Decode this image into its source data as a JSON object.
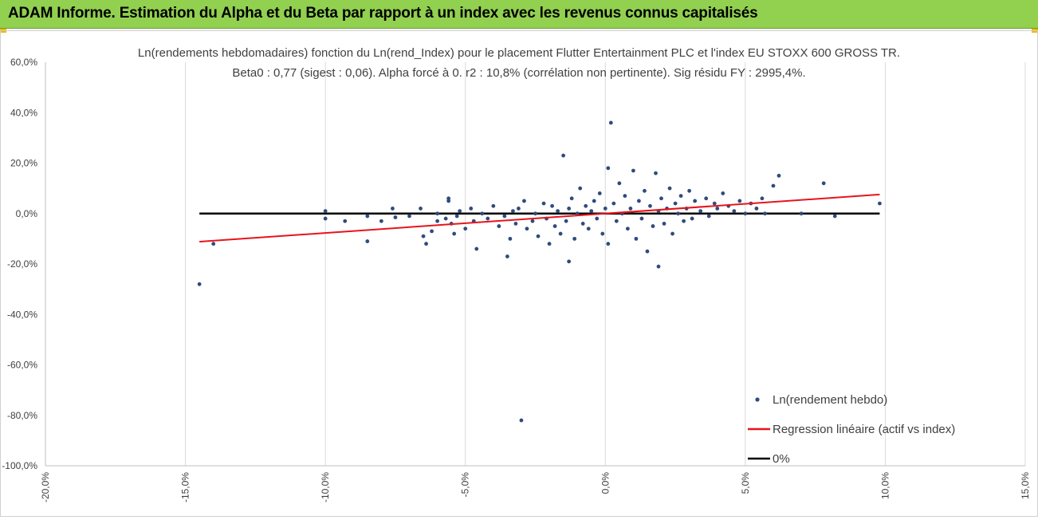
{
  "banner": {
    "title": "ADAM Informe. Estimation du Alpha et du Beta par rapport à un index avec les revenus connus capitalisés",
    "color": "#92d050"
  },
  "chart_data": {
    "type": "scatter",
    "title": "Ln(rendements hebdomadaires) fonction du Ln(rend_Index) pour le placement Flutter Entertainment PLC et l'index EU STOXX 600 GROSS TR.",
    "subtitle": "Beta0 : 0,77 (sigest : 0,06). Alpha forcé à 0. r2 : 10,8% (corrélation non pertinente). Sig résidu FY : 2995,4%.",
    "xlim": [
      -0.2,
      0.15
    ],
    "ylim": [
      -1.0,
      0.6
    ],
    "x_ticks": [
      -0.2,
      -0.15,
      -0.1,
      -0.05,
      0.0,
      0.05,
      0.1,
      0.15
    ],
    "x_tick_labels": [
      "-20,0%",
      "-15,0%",
      "-10,0%",
      "-5,0%",
      "0,0%",
      "5,0%",
      "10,0%",
      "15,0%"
    ],
    "y_ticks": [
      0.6,
      0.4,
      0.2,
      0.0,
      -0.2,
      -0.4,
      -0.6,
      -0.8,
      -1.0
    ],
    "y_tick_labels": [
      "60,0%",
      "40,0%",
      "20,0%",
      "0,0%",
      "-20,0%",
      "-40,0%",
      "-60,0%",
      "-80,0%",
      "-100,0%"
    ],
    "grid": "vertical",
    "legend_position": "bottom-right",
    "series": [
      {
        "name": "Ln(rendement hebdo)",
        "kind": "scatter",
        "color": "#2f4b7c",
        "points": [
          [
            -0.145,
            -0.28
          ],
          [
            -0.14,
            -0.12
          ],
          [
            -0.1,
            0.01
          ],
          [
            -0.1,
            -0.02
          ],
          [
            -0.093,
            -0.03
          ],
          [
            -0.085,
            -0.01
          ],
          [
            -0.085,
            -0.11
          ],
          [
            -0.08,
            -0.03
          ],
          [
            -0.076,
            0.02
          ],
          [
            -0.075,
            -0.015
          ],
          [
            -0.07,
            -0.01
          ],
          [
            -0.066,
            0.02
          ],
          [
            -0.065,
            -0.09
          ],
          [
            -0.064,
            -0.12
          ],
          [
            -0.062,
            -0.07
          ],
          [
            -0.06,
            -0.03
          ],
          [
            -0.06,
            0.0
          ],
          [
            -0.057,
            -0.02
          ],
          [
            -0.056,
            0.06
          ],
          [
            -0.056,
            0.05
          ],
          [
            -0.055,
            -0.04
          ],
          [
            -0.054,
            -0.08
          ],
          [
            -0.053,
            -0.01
          ],
          [
            -0.052,
            0.01
          ],
          [
            -0.05,
            -0.06
          ],
          [
            -0.048,
            0.02
          ],
          [
            -0.047,
            -0.03
          ],
          [
            -0.046,
            -0.14
          ],
          [
            -0.044,
            0.0
          ],
          [
            -0.042,
            -0.02
          ],
          [
            -0.04,
            0.03
          ],
          [
            -0.038,
            -0.05
          ],
          [
            -0.036,
            -0.01
          ],
          [
            -0.035,
            -0.17
          ],
          [
            -0.034,
            -0.1
          ],
          [
            -0.033,
            0.01
          ],
          [
            -0.032,
            -0.04
          ],
          [
            -0.031,
            0.02
          ],
          [
            -0.03,
            -0.82
          ],
          [
            -0.029,
            0.05
          ],
          [
            -0.028,
            -0.06
          ],
          [
            -0.026,
            -0.03
          ],
          [
            -0.025,
            0.0
          ],
          [
            -0.024,
            -0.09
          ],
          [
            -0.022,
            0.04
          ],
          [
            -0.021,
            -0.02
          ],
          [
            -0.02,
            -0.12
          ],
          [
            -0.019,
            0.03
          ],
          [
            -0.018,
            -0.05
          ],
          [
            -0.017,
            0.01
          ],
          [
            -0.016,
            -0.08
          ],
          [
            -0.015,
            0.23
          ],
          [
            -0.014,
            -0.03
          ],
          [
            -0.013,
            0.02
          ],
          [
            -0.013,
            -0.19
          ],
          [
            -0.012,
            0.06
          ],
          [
            -0.011,
            -0.1
          ],
          [
            -0.01,
            0.0
          ],
          [
            -0.009,
            0.1
          ],
          [
            -0.008,
            -0.04
          ],
          [
            -0.007,
            0.03
          ],
          [
            -0.006,
            -0.06
          ],
          [
            -0.005,
            0.01
          ],
          [
            -0.004,
            0.05
          ],
          [
            -0.003,
            -0.02
          ],
          [
            -0.002,
            0.08
          ],
          [
            -0.001,
            -0.08
          ],
          [
            0.0,
            0.02
          ],
          [
            0.001,
            0.18
          ],
          [
            0.001,
            -0.12
          ],
          [
            0.002,
            0.36
          ],
          [
            0.003,
            0.04
          ],
          [
            0.004,
            -0.03
          ],
          [
            0.005,
            0.12
          ],
          [
            0.006,
            0.0
          ],
          [
            0.007,
            0.07
          ],
          [
            0.008,
            -0.06
          ],
          [
            0.009,
            0.02
          ],
          [
            0.01,
            0.17
          ],
          [
            0.011,
            -0.1
          ],
          [
            0.012,
            0.05
          ],
          [
            0.013,
            -0.02
          ],
          [
            0.014,
            0.09
          ],
          [
            0.015,
            -0.15
          ],
          [
            0.016,
            0.03
          ],
          [
            0.017,
            -0.05
          ],
          [
            0.018,
            0.16
          ],
          [
            0.019,
            0.01
          ],
          [
            0.019,
            -0.21
          ],
          [
            0.02,
            0.06
          ],
          [
            0.021,
            -0.04
          ],
          [
            0.022,
            0.02
          ],
          [
            0.023,
            0.1
          ],
          [
            0.024,
            -0.08
          ],
          [
            0.025,
            0.04
          ],
          [
            0.026,
            0.0
          ],
          [
            0.027,
            0.07
          ],
          [
            0.028,
            -0.03
          ],
          [
            0.029,
            0.02
          ],
          [
            0.03,
            0.09
          ],
          [
            0.031,
            -0.02
          ],
          [
            0.032,
            0.05
          ],
          [
            0.034,
            0.01
          ],
          [
            0.036,
            0.06
          ],
          [
            0.037,
            -0.01
          ],
          [
            0.039,
            0.04
          ],
          [
            0.04,
            0.02
          ],
          [
            0.042,
            0.08
          ],
          [
            0.044,
            0.03
          ],
          [
            0.046,
            0.01
          ],
          [
            0.048,
            0.05
          ],
          [
            0.05,
            0.0
          ],
          [
            0.052,
            0.04
          ],
          [
            0.054,
            0.02
          ],
          [
            0.056,
            0.06
          ],
          [
            0.057,
            0.0
          ],
          [
            0.06,
            0.11
          ],
          [
            0.062,
            0.15
          ],
          [
            0.07,
            0.0
          ],
          [
            0.078,
            0.12
          ],
          [
            0.082,
            -0.01
          ],
          [
            0.098,
            0.04
          ]
        ]
      },
      {
        "name": "Regression linéaire (actif vs index)",
        "kind": "line",
        "color": "#e8141b",
        "slope": 0.77,
        "x_range": [
          -0.145,
          0.098
        ]
      },
      {
        "name": "0%",
        "kind": "line",
        "color": "#000000",
        "value": 0.0,
        "x_range": [
          -0.145,
          0.098
        ]
      }
    ]
  }
}
